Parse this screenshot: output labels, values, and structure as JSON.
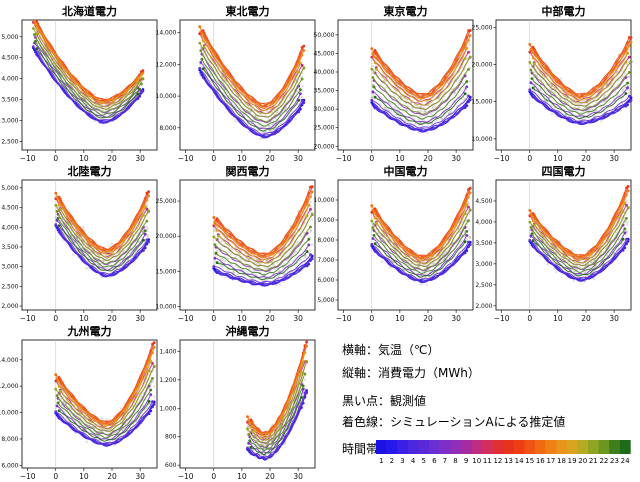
{
  "chart_data": [
    {
      "type": "line",
      "title": "北海道電力",
      "xlim": [
        -12,
        36
      ],
      "ylim": [
        2300,
        5400
      ],
      "xticks": [
        -10,
        0,
        10,
        20,
        30
      ],
      "yticks": [
        2500,
        3000,
        3500,
        4000,
        4500,
        5000
      ],
      "ytick_labels": [
        "2,500",
        "3,000",
        "3,500",
        "4,000",
        "4,500",
        "5,000"
      ],
      "x_start": -8,
      "x_end": 31,
      "min_temp": 17,
      "y_min_lo": 2950,
      "y_min_hi": 3500,
      "y_left_lo": 4700,
      "y_left_hi": 5500,
      "y_right_lo": 3700,
      "y_right_hi": 4200
    },
    {
      "type": "line",
      "title": "東北電力",
      "xlim": [
        -12,
        36
      ],
      "ylim": [
        6600,
        14800
      ],
      "xticks": [
        -10,
        0,
        10,
        20,
        30
      ],
      "yticks": [
        8000,
        10000,
        12000,
        14000
      ],
      "ytick_labels": [
        "8,000",
        "10,000",
        "12,000",
        "14,000"
      ],
      "x_start": -5,
      "x_end": 32,
      "min_temp": 18,
      "y_min_lo": 7400,
      "y_min_hi": 9500,
      "y_left_lo": 11500,
      "y_left_hi": 14500,
      "y_right_lo": 9500,
      "y_right_hi": 13300
    },
    {
      "type": "line",
      "title": "東京電力",
      "xlim": [
        -12,
        36
      ],
      "ylim": [
        19000,
        54000
      ],
      "xticks": [
        -10,
        0,
        10,
        20,
        30
      ],
      "yticks": [
        20000,
        25000,
        30000,
        35000,
        40000,
        45000,
        50000
      ],
      "ytick_labels": [
        "20,000",
        "25,000",
        "30,000",
        "35,000",
        "40,000",
        "45,000",
        "50,000"
      ],
      "x_start": 0,
      "x_end": 35,
      "min_temp": 18,
      "y_min_lo": 24000,
      "y_min_hi": 34000,
      "y_left_lo": 31000,
      "y_left_hi": 47000,
      "y_right_lo": 32000,
      "y_right_hi": 52000
    },
    {
      "type": "line",
      "title": "中部電力",
      "xlim": [
        -12,
        36
      ],
      "ylim": [
        8500,
        26000
      ],
      "xticks": [
        -10,
        0,
        10,
        20,
        30
      ],
      "yticks": [
        10000,
        15000,
        20000,
        25000
      ],
      "ytick_labels": [
        "10,000",
        "15,000",
        "20,000",
        "25,000"
      ],
      "x_start": 0,
      "x_end": 36,
      "min_temp": 18,
      "y_min_lo": 12000,
      "y_min_hi": 16000,
      "y_left_lo": 16000,
      "y_left_hi": 23000,
      "y_right_lo": 15000,
      "y_right_hi": 24000
    },
    {
      "type": "line",
      "title": "北陸電力",
      "xlim": [
        -12,
        36
      ],
      "ylim": [
        1900,
        5200
      ],
      "xticks": [
        -10,
        0,
        10,
        20,
        30
      ],
      "yticks": [
        2000,
        2500,
        3000,
        3500,
        4000,
        4500,
        5000
      ],
      "ytick_labels": [
        "2,000",
        "2,500",
        "3,000",
        "3,500",
        "4,000",
        "4,500",
        "5,000"
      ],
      "x_start": 0,
      "x_end": 33,
      "min_temp": 18,
      "y_min_lo": 2750,
      "y_min_hi": 3450,
      "y_left_lo": 4000,
      "y_left_hi": 4900,
      "y_right_lo": 3600,
      "y_right_hi": 4950
    },
    {
      "type": "line",
      "title": "関西電力",
      "xlim": [
        -12,
        36
      ],
      "ylim": [
        9500,
        28000
      ],
      "xticks": [
        -10,
        0,
        10,
        20,
        30
      ],
      "yticks": [
        10000,
        15000,
        20000,
        25000
      ],
      "ytick_labels": [
        "10,000",
        "15,000",
        "20,000",
        "25,000"
      ],
      "x_start": 0,
      "x_end": 35,
      "min_temp": 18,
      "y_min_lo": 13000,
      "y_min_hi": 17500,
      "y_left_lo": 15000,
      "y_left_hi": 23000,
      "y_right_lo": 16500,
      "y_right_hi": 27500
    },
    {
      "type": "line",
      "title": "中国電力",
      "xlim": [
        -12,
        36
      ],
      "ylim": [
        4500,
        11000
      ],
      "xticks": [
        -10,
        0,
        10,
        20,
        30
      ],
      "yticks": [
        5000,
        6000,
        7000,
        8000,
        9000,
        10000
      ],
      "ytick_labels": [
        "5,000",
        "6,000",
        "7,000",
        "8,000",
        "9,000",
        "10,000"
      ],
      "x_start": 0,
      "x_end": 35,
      "min_temp": 18,
      "y_min_lo": 5900,
      "y_min_hi": 7200,
      "y_left_lo": 7600,
      "y_left_hi": 9800,
      "y_right_lo": 7700,
      "y_right_hi": 10700
    },
    {
      "type": "line",
      "title": "四国電力",
      "xlim": [
        -12,
        36
      ],
      "ylim": [
        1900,
        5000
      ],
      "xticks": [
        -10,
        0,
        10,
        20,
        30
      ],
      "yticks": [
        2000,
        2500,
        3000,
        3500,
        4000,
        4500
      ],
      "ytick_labels": [
        "2,000",
        "2,500",
        "3,000",
        "3,500",
        "4,000",
        "4,500"
      ],
      "x_start": 0,
      "x_end": 35,
      "min_temp": 18,
      "y_min_lo": 2600,
      "y_min_hi": 3200,
      "y_left_lo": 3500,
      "y_left_hi": 4300,
      "y_right_lo": 3500,
      "y_right_hi": 4900
    },
    {
      "type": "line",
      "title": "九州電力",
      "xlim": [
        -12,
        36
      ],
      "ylim": [
        5800,
        15500
      ],
      "xticks": [
        -10,
        0,
        10,
        20,
        30
      ],
      "yticks": [
        6000,
        8000,
        10000,
        12000,
        14000
      ],
      "ytick_labels": [
        "6,000",
        "8,000",
        "10,000",
        "12,000",
        "14,000"
      ],
      "x_start": 0,
      "x_end": 35,
      "min_temp": 18,
      "y_min_lo": 7500,
      "y_min_hi": 9300,
      "y_left_lo": 9800,
      "y_left_hi": 13000,
      "y_right_lo": 10500,
      "y_right_hi": 15500
    },
    {
      "type": "line",
      "title": "沖縄電力",
      "xlim": [
        -12,
        36
      ],
      "ylim": [
        580,
        1480
      ],
      "xticks": [
        -10,
        0,
        10,
        20,
        30
      ],
      "yticks": [
        600,
        800,
        1000,
        1200,
        1400
      ],
      "ytick_labels": [
        "600",
        "800",
        "1,000",
        "1,200",
        "1,400"
      ],
      "x_start": 12,
      "x_end": 33,
      "min_temp": 18,
      "y_min_lo": 640,
      "y_min_hi": 830,
      "y_left_lo": 700,
      "y_left_hi": 950,
      "y_right_lo": 1100,
      "y_right_hi": 1480
    }
  ],
  "notes": {
    "line1": "横軸：気温（℃）",
    "line2": "縦軸：消費電力（MWh）",
    "line3": "黒い点：観測値",
    "line4": "着色線：シミュレーションAによる推定値"
  },
  "colorbar": {
    "label": "時間帯",
    "hours": [
      "1",
      "2",
      "3",
      "4",
      "5",
      "6",
      "7",
      "8",
      "9",
      "10",
      "11",
      "12",
      "13",
      "14",
      "15",
      "16",
      "17",
      "18",
      "19",
      "20",
      "21",
      "22",
      "23",
      "24"
    ],
    "colors": [
      "#1d12e6",
      "#2418ea",
      "#3a1fe6",
      "#4b27e0",
      "#5b2ad8",
      "#6a2fd2",
      "#7d2ec8",
      "#8f2eb8",
      "#a52ba0",
      "#be2c84",
      "#d42d60",
      "#e03034",
      "#e8321a",
      "#ec3d14",
      "#ef5412",
      "#f06a12",
      "#ef8016",
      "#e9941c",
      "#d9a521",
      "#b7aa23",
      "#8ea422",
      "#6b961f",
      "#3e7e1d",
      "#1f6b1a"
    ]
  }
}
